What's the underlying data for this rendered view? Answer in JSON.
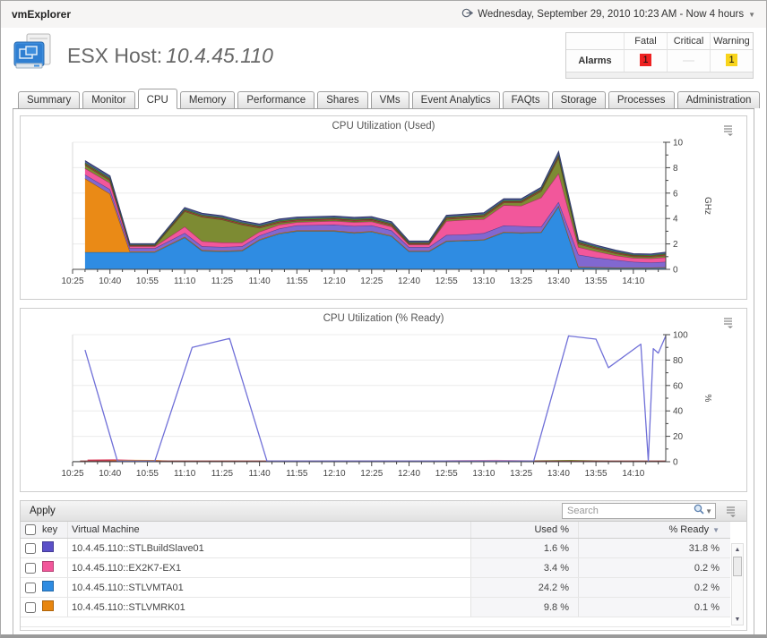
{
  "topbar": {
    "app_title": "vmExplorer",
    "timerange_label": "Wednesday, September 29, 2010 10:23 AM - Now 4 hours"
  },
  "header": {
    "title_label": "ESX Host:",
    "title_value": "10.4.45.110",
    "alarms": {
      "row_label": "Alarms",
      "columns": [
        "Fatal",
        "Critical",
        "Warning"
      ],
      "fatal_count": "1",
      "critical_count": "",
      "warning_count": "1",
      "fatal_color": "#ee2222",
      "critical_color": "#ececec",
      "warning_color": "#f8d41c"
    }
  },
  "tabs": {
    "active": "CPU",
    "items": [
      "Summary",
      "Monitor",
      "CPU",
      "Memory",
      "Performance",
      "Shares",
      "VMs",
      "Event Analytics",
      "FAQts",
      "Storage",
      "Processes",
      "Administration"
    ]
  },
  "table": {
    "apply_label": "Apply",
    "search_placeholder": "Search",
    "columns": {
      "key": "key",
      "vm": "Virtual Machine",
      "used": "Used %",
      "ready": "% Ready"
    },
    "sorted_by": "% Ready",
    "rows": [
      {
        "color": "#5b50c8",
        "vm": "10.4.45.110::STLBuildSlave01",
        "used": "1.6 %",
        "ready": "31.8 %"
      },
      {
        "color": "#f2579b",
        "vm": "10.4.45.110::EX2K7-EX1",
        "used": "3.4 %",
        "ready": "0.2 %"
      },
      {
        "color": "#2f8ce2",
        "vm": "10.4.45.110::STLVMTA01",
        "used": "24.2 %",
        "ready": "0.2 %"
      },
      {
        "color": "#e8860f",
        "vm": "10.4.45.110::STLVMRK01",
        "used": "9.8 %",
        "ready": "0.1 %"
      }
    ]
  },
  "chart_data": [
    {
      "type": "area",
      "title": "CPU Utilization (Used)",
      "ylabel": "GHz",
      "ylim": [
        0,
        10
      ],
      "ytick_step": 2,
      "yminor_step": 1,
      "x_domain": [
        0,
        238
      ],
      "xminor_step": 5,
      "xtick_step": 15,
      "xtick_labels": [
        "10:25",
        "10:40",
        "10:55",
        "11:10",
        "11:25",
        "11:40",
        "11:55",
        "12:10",
        "12:25",
        "12:40",
        "12:55",
        "13:10",
        "13:25",
        "13:40",
        "13:55",
        "14:10"
      ],
      "grid": true,
      "legend": "none",
      "x": [
        5,
        15,
        23,
        33,
        45,
        52,
        60,
        68,
        75,
        83,
        90,
        105,
        113,
        120,
        128,
        135,
        143,
        150,
        158,
        165,
        173,
        180,
        188,
        195,
        203,
        210,
        218,
        225,
        232,
        238
      ],
      "series": [
        {
          "name": "series-blue-STLVMTA01",
          "color": "#2f8ce2",
          "stroke": "#1d5f9e",
          "values": [
            1.35,
            1.35,
            1.35,
            1.35,
            2.5,
            1.45,
            1.4,
            1.45,
            2.3,
            2.8,
            3.0,
            3.0,
            2.85,
            2.95,
            2.6,
            1.4,
            1.4,
            2.2,
            2.25,
            2.3,
            2.9,
            2.85,
            2.9,
            4.95,
            0.15,
            0.12,
            0.1,
            0.1,
            0.1,
            0.12
          ]
        },
        {
          "name": "series-orange-STLVMRK01",
          "color": "#ea8a16",
          "stroke": "#9c5a0a",
          "values": [
            5.8,
            4.6,
            0.06,
            0.06,
            0.06,
            0.06,
            0.06,
            0.06,
            0.06,
            0.06,
            0.06,
            0.06,
            0.06,
            0.06,
            0.06,
            0.05,
            0.05,
            0.05,
            0.05,
            0.05,
            0.05,
            0.05,
            0.05,
            0.06,
            0.05,
            0.05,
            0.04,
            0.04,
            0.04,
            0.05
          ]
        },
        {
          "name": "series-purple-STLBuildSlave01",
          "color": "#8168d0",
          "stroke": "#53418f",
          "values": [
            0.3,
            0.35,
            0.25,
            0.25,
            0.3,
            0.3,
            0.3,
            0.3,
            0.3,
            0.35,
            0.4,
            0.45,
            0.5,
            0.45,
            0.4,
            0.3,
            0.3,
            0.45,
            0.45,
            0.5,
            0.5,
            0.5,
            0.4,
            0.3,
            0.95,
            0.75,
            0.6,
            0.45,
            0.4,
            0.42
          ]
        },
        {
          "name": "series-pink-EX2K7-EX1",
          "color": "#f2579b",
          "stroke": "#a8305f",
          "values": [
            0.5,
            0.5,
            0.15,
            0.15,
            0.5,
            0.4,
            0.35,
            0.3,
            0.3,
            0.3,
            0.25,
            0.3,
            0.3,
            0.3,
            0.3,
            0.2,
            0.2,
            1.1,
            1.15,
            1.1,
            1.6,
            1.6,
            2.3,
            2.25,
            0.6,
            0.5,
            0.35,
            0.3,
            0.32,
            0.35
          ]
        },
        {
          "name": "series-olive",
          "color": "#7d8b33",
          "stroke": "#555e20",
          "values": [
            0.25,
            0.2,
            0.05,
            0.05,
            1.2,
            1.9,
            1.8,
            1.4,
            0.3,
            0.15,
            0.1,
            0.08,
            0.08,
            0.08,
            0.08,
            0.03,
            0.03,
            0.15,
            0.15,
            0.2,
            0.2,
            0.25,
            0.5,
            1.2,
            0.25,
            0.2,
            0.15,
            0.12,
            0.12,
            0.14
          ]
        },
        {
          "name": "series-darkred",
          "color": "#a4403e",
          "stroke": "#6d2422",
          "values": [
            0.1,
            0.1,
            0.05,
            0.05,
            0.1,
            0.1,
            0.1,
            0.1,
            0.1,
            0.1,
            0.1,
            0.1,
            0.1,
            0.1,
            0.1,
            0.08,
            0.08,
            0.1,
            0.1,
            0.1,
            0.1,
            0.1,
            0.1,
            0.15,
            0.1,
            0.1,
            0.09,
            0.08,
            0.08,
            0.09
          ]
        },
        {
          "name": "series-green",
          "color": "#4d9e3c",
          "stroke": "#2e6323",
          "values": [
            0.1,
            0.1,
            0.03,
            0.03,
            0.08,
            0.08,
            0.08,
            0.08,
            0.08,
            0.08,
            0.08,
            0.08,
            0.08,
            0.08,
            0.08,
            0.06,
            0.06,
            0.08,
            0.08,
            0.08,
            0.08,
            0.08,
            0.08,
            0.1,
            0.08,
            0.08,
            0.07,
            0.06,
            0.06,
            0.07
          ]
        },
        {
          "name": "series-slate",
          "color": "#4f5a9e",
          "stroke": "#343c6b",
          "values": [
            0.15,
            0.15,
            0.07,
            0.07,
            0.12,
            0.12,
            0.12,
            0.12,
            0.12,
            0.12,
            0.12,
            0.12,
            0.12,
            0.12,
            0.12,
            0.1,
            0.1,
            0.12,
            0.12,
            0.12,
            0.12,
            0.12,
            0.12,
            0.25,
            0.12,
            0.1,
            0.1,
            0.08,
            0.08,
            0.1
          ]
        }
      ]
    },
    {
      "type": "line",
      "title": "CPU Utilization (% Ready)",
      "ylabel": "%",
      "ylim": [
        0,
        100
      ],
      "ytick_step": 20,
      "yminor_step": 10,
      "x_domain": [
        0,
        238
      ],
      "xminor_step": 5,
      "xtick_step": 15,
      "xtick_labels": [
        "10:25",
        "10:40",
        "10:55",
        "11:10",
        "11:25",
        "11:40",
        "11:55",
        "12:10",
        "12:25",
        "12:40",
        "12:55",
        "13:10",
        "13:25",
        "13:40",
        "13:55",
        "14:10"
      ],
      "grid": true,
      "legend": "none",
      "series": [
        {
          "name": "line-gray",
          "color": "#c9c9c9",
          "width": 1.2,
          "points": [
            [
              0,
              0.3
            ],
            [
              20,
              0.4
            ],
            [
              35,
              0.3
            ]
          ]
        },
        {
          "name": "line-crimson",
          "color": "#e03a5a",
          "width": 1.6,
          "points": [
            [
              6,
              1.1
            ],
            [
              16,
              1.3
            ],
            [
              24,
              0.9
            ],
            [
              30,
              0.5
            ]
          ]
        },
        {
          "name": "line-orange",
          "color": "#ea8a16",
          "width": 1.4,
          "points": [
            [
              15,
              0.7
            ],
            [
              25,
              1.0
            ],
            [
              33,
              0.9
            ],
            [
              38,
              0.3
            ]
          ]
        },
        {
          "name": "line-pink",
          "color": "#f2a0c0",
          "width": 1.2,
          "points": [
            [
              150,
              0.7
            ],
            [
              170,
              1.1
            ],
            [
              185,
              0.6
            ]
          ]
        },
        {
          "name": "line-green",
          "color": "#7aa83a",
          "width": 1.2,
          "points": [
            [
              185,
              0.6
            ],
            [
              200,
              1.0
            ],
            [
              215,
              0.5
            ]
          ]
        },
        {
          "name": "line-darkred",
          "color": "#8b3a3a",
          "width": 1.4,
          "points": [
            [
              3,
              0.5
            ],
            [
              238,
              0.5
            ]
          ]
        },
        {
          "name": "line-purple-main",
          "color": "#7070d8",
          "width": 1.3,
          "points": [
            [
              5,
              88
            ],
            [
              18,
              0.5
            ],
            [
              33,
              0.5
            ],
            [
              48,
              90
            ],
            [
              63,
              97
            ],
            [
              78,
              0.5
            ],
            [
              110,
              0.5
            ],
            [
              150,
              0.5
            ],
            [
              185,
              0.5
            ],
            [
              199,
              99
            ],
            [
              210,
              96.5
            ],
            [
              215,
              74
            ],
            [
              228,
              92.5
            ],
            [
              231,
              0.5
            ],
            [
              233,
              89
            ],
            [
              235,
              85.5
            ],
            [
              238,
              99
            ]
          ]
        }
      ]
    }
  ]
}
